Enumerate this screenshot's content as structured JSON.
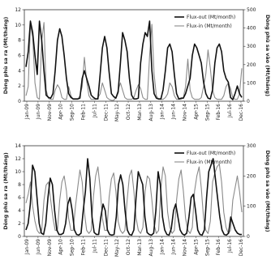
{
  "chart_data": [
    {
      "type": "line",
      "ylabel_left": "Dòng phù sa ra (Mt/tháng)",
      "ylabel_right": "Dòng phù sa vào (Mt/tháng)",
      "y_left_ticks": [
        "0",
        "2",
        "4",
        "6",
        "8",
        "10",
        "12"
      ],
      "y_right_ticks": [
        "0",
        "100",
        "200",
        "300",
        "400",
        "500"
      ],
      "ylim_left": [
        0,
        12
      ],
      "ylim_right": [
        0,
        500
      ],
      "x_ticks": [
        "Jan-09",
        "Jun-09",
        "Nov-09",
        "Apr-10",
        "Sep-10",
        "Feb-11",
        "Jul-11",
        "Dec-11",
        "May-12",
        "Oct-12",
        "Mar-13",
        "Aug-13",
        "Jan-14",
        "Jun-14",
        "Nov-14",
        "Apr-15",
        "Sep-15",
        "Feb-16",
        "Jul-16",
        "Dec-16"
      ],
      "grid": false,
      "legend_position": "top-right",
      "series": [
        {
          "name": "Flux-out (Mt/month)",
          "axis": "left",
          "color": "#111111",
          "values": [
            4.5,
            6.5,
            10.5,
            9,
            6,
            3.5,
            10.5,
            8,
            4,
            0.8,
            0.5,
            0.4,
            1,
            4,
            8,
            9.5,
            8.5,
            6,
            3,
            1,
            0.5,
            0.3,
            0.3,
            0.3,
            0.4,
            3,
            4,
            3,
            2,
            0.8,
            0.5,
            0.3,
            0.3,
            3.5,
            7,
            8.5,
            7,
            3.8,
            1,
            0.6,
            0.4,
            1.2,
            5,
            9,
            8,
            6.5,
            3,
            0.8,
            0.3,
            0.3,
            0.4,
            5,
            7.5,
            9,
            8.5,
            10.5,
            4,
            1,
            0.4,
            0.3,
            0.3,
            1.5,
            4,
            7,
            7.5,
            6.5,
            3.5,
            1,
            0.3,
            0.4,
            0.4,
            1,
            2,
            3,
            6,
            7.5,
            7,
            6,
            5,
            2.5,
            1,
            0.4,
            0.3,
            1.5,
            5,
            7,
            7.5,
            6.5,
            4,
            3,
            2.5,
            0.5,
            0.2,
            1,
            2,
            1,
            0.5
          ]
        },
        {
          "name": "Flux-in (Mt/month)",
          "axis": "right",
          "color": "#8a8a8a",
          "values": [
            30,
            80,
            420,
            350,
            100,
            20,
            10,
            330,
            430,
            60,
            15,
            10,
            10,
            60,
            90,
            70,
            20,
            10,
            10,
            80,
            30,
            10,
            10,
            10,
            30,
            80,
            240,
            110,
            30,
            10,
            10,
            10,
            20,
            40,
            100,
            60,
            20,
            10,
            5,
            5,
            20,
            60,
            100,
            60,
            20,
            10,
            10,
            10,
            20,
            60,
            90,
            70,
            20,
            10,
            10,
            250,
            420,
            150,
            30,
            10,
            10,
            10,
            20,
            40,
            100,
            80,
            30,
            10,
            10,
            10,
            20,
            80,
            230,
            60,
            20,
            10,
            10,
            10,
            20,
            80,
            150,
            280,
            180,
            60,
            20,
            10,
            10,
            10,
            30,
            80,
            100,
            70,
            20,
            10,
            10,
            40,
            180
          ]
        }
      ]
    },
    {
      "type": "line",
      "ylabel_left": "Dòng phù sa ra (Mt/tháng)",
      "ylabel_right": "Dòng phù sa vào (Mt/tháng)",
      "y_left_ticks": [
        "0",
        "2",
        "4",
        "6",
        "8",
        "10",
        "12",
        "14"
      ],
      "y_right_ticks": [
        "0",
        "100",
        "200",
        "300"
      ],
      "ylim_left": [
        0,
        14
      ],
      "ylim_right": [
        0,
        300
      ],
      "x_ticks": [
        "Jan-09",
        "Jun-09",
        "Nov-09",
        "Apr-10",
        "Sep-10",
        "Feb-11",
        "Jul-11",
        "Dec-11",
        "May-12",
        "Oct-12",
        "Mar-13",
        "Aug-13",
        "Jan-14",
        "Jun-14",
        "Nov-14",
        "Apr-15",
        "Sep-15",
        "Feb-16",
        "Jul-16",
        "Dec-16"
      ],
      "grid": false,
      "legend_position": "top-right",
      "series": [
        {
          "name": "Flux-out (Mt/month)",
          "axis": "left",
          "color": "#111111",
          "values": [
            1,
            2,
            5,
            11,
            10,
            6,
            2,
            0.5,
            0.3,
            2,
            6,
            9,
            8,
            4,
            1,
            0.3,
            0.3,
            0.5,
            2,
            5,
            6,
            4,
            1,
            0.3,
            0.2,
            0.5,
            4,
            7,
            12,
            9,
            3,
            0.6,
            0.3,
            0.3,
            3,
            5,
            4,
            1,
            0.3,
            0.2,
            0.3,
            3,
            8,
            9.5,
            8,
            4,
            1,
            0.3,
            0.2,
            1,
            6,
            10,
            9,
            8,
            3,
            0.6,
            0.3,
            0.2,
            0.5,
            4,
            10,
            8,
            3,
            1,
            0.3,
            0.2,
            1.2,
            4,
            5,
            3,
            1,
            0.4,
            0.2,
            0.5,
            3,
            6,
            6.5,
            4,
            1,
            0.3,
            0.2,
            1,
            6,
            10,
            11,
            12,
            9,
            6,
            3,
            1,
            0.3,
            0.2,
            0.5,
            3,
            2,
            1,
            0.5,
            0.3,
            0.3
          ]
        },
        {
          "name": "Flux-in (Mt/month)",
          "axis": "right",
          "color": "#8a8a8a",
          "values": [
            110,
            140,
            180,
            100,
            50,
            20,
            10,
            20,
            120,
            170,
            180,
            120,
            60,
            20,
            20,
            120,
            180,
            200,
            150,
            60,
            20,
            20,
            100,
            160,
            220,
            180,
            80,
            20,
            10,
            20,
            130,
            200,
            230,
            160,
            60,
            20,
            20,
            130,
            190,
            210,
            150,
            50,
            20,
            10,
            20,
            120,
            200,
            220,
            150,
            60,
            20,
            10,
            30,
            150,
            200,
            190,
            120,
            40,
            10,
            20,
            160,
            230,
            200,
            80,
            30,
            10,
            20,
            120,
            190,
            220,
            150,
            60,
            20,
            10,
            30,
            150,
            200,
            230,
            160,
            60,
            20,
            10,
            50,
            180,
            210,
            230,
            240,
            180,
            80,
            30,
            10,
            20,
            120,
            160,
            200,
            150,
            80
          ]
        }
      ]
    }
  ]
}
